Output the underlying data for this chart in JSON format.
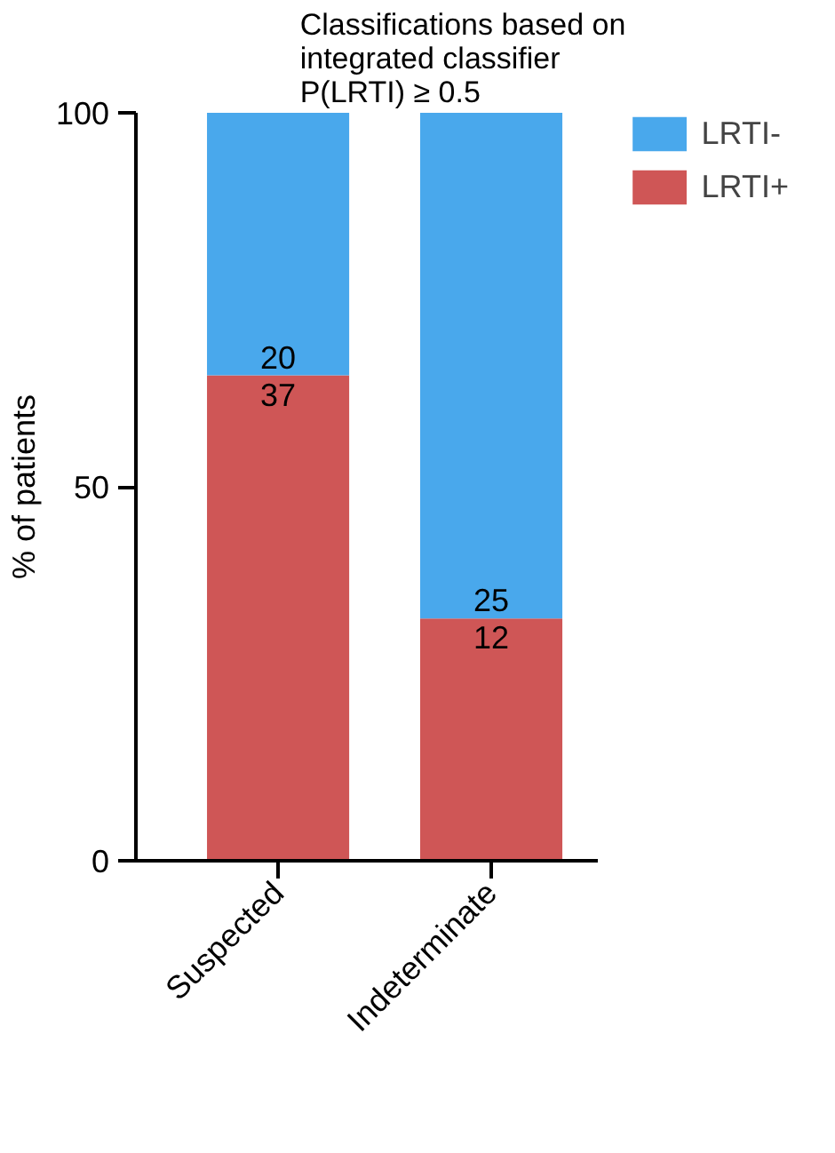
{
  "chart_data": {
    "type": "bar",
    "title": "Classifications based on\nintegrated classifier\nP(LRTI) ≥ 0.5",
    "ylabel": "% of patients",
    "categories": [
      "Suspected",
      "Indeterminate"
    ],
    "stacked": true,
    "series": [
      {
        "name": "LRTI+",
        "color": "#cf5656",
        "values": [
          64.9,
          32.4
        ]
      },
      {
        "name": "LRTI-",
        "color": "#49a8ec",
        "values": [
          35.1,
          67.6
        ]
      }
    ],
    "annotations": [
      {
        "text": "20",
        "x": "Suspected",
        "y": 64.9
      },
      {
        "text": "37",
        "x": "Suspected",
        "y": 64.9
      },
      {
        "text": "25",
        "x": "Indeterminate",
        "y": 32.4
      },
      {
        "text": "12",
        "x": "Indeterminate",
        "y": 32.4
      }
    ],
    "ylim": [
      0,
      100
    ],
    "yticks": [
      0,
      50,
      100
    ],
    "legend": "right",
    "grid": false
  }
}
